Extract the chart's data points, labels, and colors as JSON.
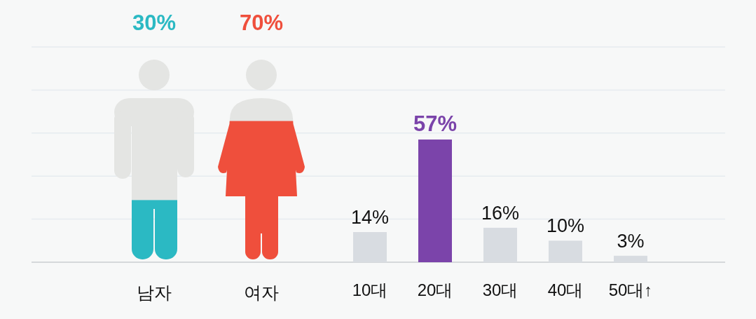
{
  "chart_data": [
    {
      "type": "other",
      "categories": [
        "남자",
        "여자"
      ],
      "values": [
        30,
        70
      ],
      "value_labels": [
        "30%",
        "70%"
      ],
      "colors": [
        "#2bb9c3",
        "#ef4f3c"
      ]
    },
    {
      "type": "bar",
      "categories": [
        "10대",
        "20대",
        "30대",
        "40대",
        "50대↑"
      ],
      "values": [
        14,
        57,
        16,
        10,
        3
      ],
      "value_labels": [
        "14%",
        "57%",
        "16%",
        "10%",
        "3%"
      ],
      "colors": [
        "#d8dce1",
        "#7b44aa",
        "#d8dce1",
        "#d8dce1",
        "#d8dce1"
      ],
      "ylim": [
        0,
        100
      ],
      "yticks": [
        {
          "value": 0,
          "label": null
        },
        {
          "value": 20,
          "label": null
        },
        {
          "value": 40,
          "label": null
        },
        {
          "value": 60,
          "label": null
        },
        {
          "value": 80,
          "label": null
        },
        {
          "value": 100,
          "label": null
        }
      ],
      "grid": "y"
    }
  ]
}
